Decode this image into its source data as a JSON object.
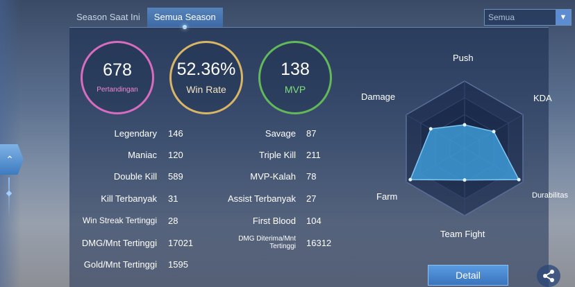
{
  "tabs": [
    {
      "label": "Season Saat Ini",
      "active": false
    },
    {
      "label": "Semua Season",
      "active": true
    }
  ],
  "filter": {
    "selected": "Semua"
  },
  "summary": {
    "matches": {
      "value": "678",
      "label": "Pertandingan",
      "color": "#d86cc0"
    },
    "win_rate": {
      "value": "52.36%",
      "label": "Win Rate",
      "color": "#d9b566"
    },
    "mvp": {
      "value": "138",
      "label": "MVP",
      "color": "#63b95a"
    }
  },
  "stats_left": [
    {
      "label": "Legendary",
      "value": "146"
    },
    {
      "label": "Maniac",
      "value": "120"
    },
    {
      "label": "Double Kill",
      "value": "589"
    },
    {
      "label": "Kill Terbanyak",
      "value": "31"
    },
    {
      "label": "Win Streak Tertinggi",
      "value": "28"
    },
    {
      "label": "DMG/Mnt Tertinggi",
      "value": "17021"
    },
    {
      "label": "Gold/Mnt Tertinggi",
      "value": "1595"
    }
  ],
  "stats_right": [
    {
      "label": "Savage",
      "value": "87"
    },
    {
      "label": "Triple Kill",
      "value": "211"
    },
    {
      "label": "MVP-Kalah",
      "value": "78"
    },
    {
      "label": "Assist Terbanyak",
      "value": "27"
    },
    {
      "label": "First Blood",
      "value": "104"
    },
    {
      "label": "DMG Diterima/Mnt Tertinggi",
      "value": "16312"
    }
  ],
  "radar": {
    "axes": [
      "Push",
      "KDA",
      "Durabilitas",
      "Team Fight",
      "Farm",
      "Damage"
    ],
    "values": [
      0.35,
      0.5,
      0.93,
      0.47,
      0.93,
      0.58
    ],
    "fill_color": "#3f9fdc"
  },
  "buttons": {
    "detail": "Detail"
  },
  "icons": {
    "share": "share-icon",
    "dropdown": "chevron-down-icon",
    "side_tab": "chevron-up-icon"
  }
}
